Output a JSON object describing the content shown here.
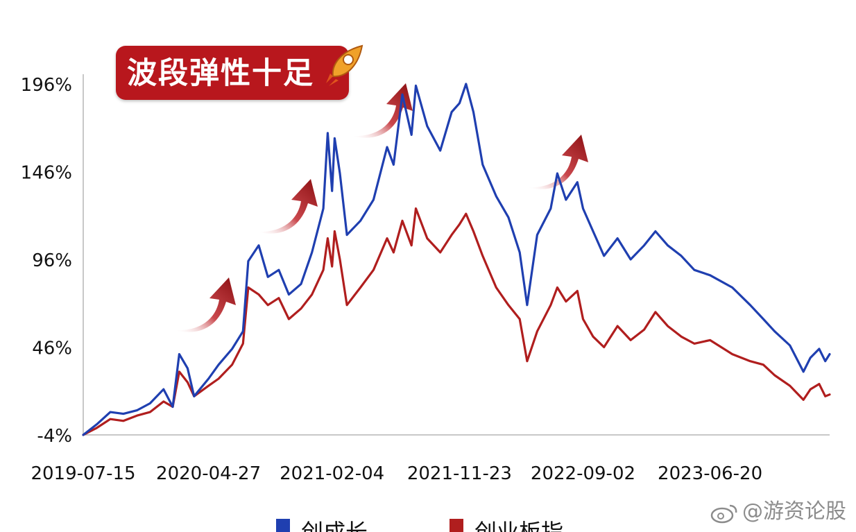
{
  "banner": {
    "text": "波段弹性十足",
    "color": "#b8171d"
  },
  "watermark": {
    "text": "@游资论股"
  },
  "chart_data": {
    "type": "line",
    "x_tick_labels": [
      "2019-07-15",
      "2020-04-27",
      "2021-02-04",
      "2021-11-23",
      "2022-09-02",
      "2023-06-20"
    ],
    "x_range": [
      "2019-07-15",
      "2024-03-20"
    ],
    "y_tick_labels": [
      "196%",
      "146%",
      "96%",
      "46%",
      "-4%"
    ],
    "y_ticks": [
      196,
      146,
      96,
      46,
      -4
    ],
    "ylim": [
      -4,
      196
    ],
    "grid": false,
    "legend_position": "bottom",
    "series": [
      {
        "name": "创成长",
        "color": "#1f3fb0",
        "points": [
          [
            "2019-07-15",
            -4
          ],
          [
            "2019-08-15",
            2
          ],
          [
            "2019-09-15",
            9
          ],
          [
            "2019-10-15",
            8
          ],
          [
            "2019-11-15",
            10
          ],
          [
            "2019-12-15",
            14
          ],
          [
            "2020-01-15",
            22
          ],
          [
            "2020-02-05",
            12
          ],
          [
            "2020-02-20",
            42
          ],
          [
            "2020-03-10",
            34
          ],
          [
            "2020-03-25",
            18
          ],
          [
            "2020-04-27",
            28
          ],
          [
            "2020-05-20",
            36
          ],
          [
            "2020-06-20",
            45
          ],
          [
            "2020-07-15",
            55
          ],
          [
            "2020-07-27",
            95
          ],
          [
            "2020-08-20",
            104
          ],
          [
            "2020-09-10",
            86
          ],
          [
            "2020-10-05",
            90
          ],
          [
            "2020-10-28",
            76
          ],
          [
            "2020-11-25",
            82
          ],
          [
            "2020-12-20",
            100
          ],
          [
            "2021-01-15",
            125
          ],
          [
            "2021-01-25",
            168
          ],
          [
            "2021-02-04",
            135
          ],
          [
            "2021-02-10",
            165
          ],
          [
            "2021-02-22",
            145
          ],
          [
            "2021-03-10",
            110
          ],
          [
            "2021-04-10",
            118
          ],
          [
            "2021-05-10",
            130
          ],
          [
            "2021-06-10",
            160
          ],
          [
            "2021-06-25",
            150
          ],
          [
            "2021-07-15",
            190
          ],
          [
            "2021-08-05",
            167
          ],
          [
            "2021-08-15",
            195
          ],
          [
            "2021-09-10",
            172
          ],
          [
            "2021-10-10",
            158
          ],
          [
            "2021-11-05",
            180
          ],
          [
            "2021-11-23",
            185
          ],
          [
            "2021-12-08",
            196
          ],
          [
            "2021-12-25",
            180
          ],
          [
            "2022-01-15",
            150
          ],
          [
            "2022-02-15",
            132
          ],
          [
            "2022-03-15",
            120
          ],
          [
            "2022-04-10",
            100
          ],
          [
            "2022-04-27",
            70
          ],
          [
            "2022-05-20",
            110
          ],
          [
            "2022-06-20",
            125
          ],
          [
            "2022-07-05",
            145
          ],
          [
            "2022-07-25",
            130
          ],
          [
            "2022-08-20",
            140
          ],
          [
            "2022-09-02",
            125
          ],
          [
            "2022-09-25",
            112
          ],
          [
            "2022-10-20",
            98
          ],
          [
            "2022-11-20",
            108
          ],
          [
            "2022-12-20",
            96
          ],
          [
            "2023-01-20",
            104
          ],
          [
            "2023-02-15",
            112
          ],
          [
            "2023-03-15",
            104
          ],
          [
            "2023-04-15",
            98
          ],
          [
            "2023-05-15",
            90
          ],
          [
            "2023-06-20",
            87
          ],
          [
            "2023-08-10",
            80
          ],
          [
            "2023-09-20",
            70
          ],
          [
            "2023-10-20",
            62
          ],
          [
            "2023-11-15",
            55
          ],
          [
            "2023-12-20",
            47
          ],
          [
            "2024-01-20",
            32
          ],
          [
            "2024-02-05",
            40
          ],
          [
            "2024-02-25",
            45
          ],
          [
            "2024-03-10",
            38
          ],
          [
            "2024-03-20",
            42
          ]
        ]
      },
      {
        "name": "创业板指",
        "color": "#b01e1e",
        "points": [
          [
            "2019-07-15",
            -4
          ],
          [
            "2019-08-15",
            0
          ],
          [
            "2019-09-15",
            5
          ],
          [
            "2019-10-15",
            4
          ],
          [
            "2019-11-15",
            7
          ],
          [
            "2019-12-15",
            9
          ],
          [
            "2020-01-15",
            15
          ],
          [
            "2020-02-05",
            12
          ],
          [
            "2020-02-20",
            32
          ],
          [
            "2020-03-10",
            26
          ],
          [
            "2020-03-25",
            18
          ],
          [
            "2020-04-27",
            24
          ],
          [
            "2020-05-20",
            28
          ],
          [
            "2020-06-20",
            36
          ],
          [
            "2020-07-15",
            48
          ],
          [
            "2020-07-27",
            80
          ],
          [
            "2020-08-20",
            76
          ],
          [
            "2020-09-10",
            70
          ],
          [
            "2020-10-05",
            74
          ],
          [
            "2020-10-28",
            62
          ],
          [
            "2020-11-25",
            68
          ],
          [
            "2020-12-20",
            76
          ],
          [
            "2021-01-15",
            90
          ],
          [
            "2021-01-25",
            108
          ],
          [
            "2021-02-04",
            92
          ],
          [
            "2021-02-10",
            112
          ],
          [
            "2021-02-22",
            96
          ],
          [
            "2021-03-10",
            70
          ],
          [
            "2021-04-10",
            80
          ],
          [
            "2021-05-10",
            90
          ],
          [
            "2021-06-10",
            108
          ],
          [
            "2021-06-25",
            100
          ],
          [
            "2021-07-15",
            118
          ],
          [
            "2021-08-05",
            104
          ],
          [
            "2021-08-15",
            125
          ],
          [
            "2021-09-10",
            108
          ],
          [
            "2021-10-10",
            100
          ],
          [
            "2021-11-05",
            110
          ],
          [
            "2021-11-23",
            116
          ],
          [
            "2021-12-08",
            122
          ],
          [
            "2021-12-25",
            112
          ],
          [
            "2022-01-15",
            98
          ],
          [
            "2022-02-15",
            80
          ],
          [
            "2022-03-15",
            70
          ],
          [
            "2022-04-10",
            62
          ],
          [
            "2022-04-27",
            38
          ],
          [
            "2022-05-20",
            55
          ],
          [
            "2022-06-20",
            70
          ],
          [
            "2022-07-05",
            80
          ],
          [
            "2022-07-25",
            72
          ],
          [
            "2022-08-20",
            78
          ],
          [
            "2022-09-02",
            62
          ],
          [
            "2022-09-25",
            52
          ],
          [
            "2022-10-20",
            46
          ],
          [
            "2022-11-20",
            58
          ],
          [
            "2022-12-20",
            50
          ],
          [
            "2023-01-20",
            56
          ],
          [
            "2023-02-15",
            66
          ],
          [
            "2023-03-15",
            58
          ],
          [
            "2023-04-15",
            52
          ],
          [
            "2023-05-15",
            48
          ],
          [
            "2023-06-20",
            50
          ],
          [
            "2023-08-10",
            42
          ],
          [
            "2023-09-20",
            38
          ],
          [
            "2023-10-20",
            36
          ],
          [
            "2023-11-15",
            30
          ],
          [
            "2023-12-20",
            24
          ],
          [
            "2024-01-20",
            16
          ],
          [
            "2024-02-05",
            22
          ],
          [
            "2024-02-25",
            25
          ],
          [
            "2024-03-10",
            18
          ],
          [
            "2024-03-20",
            19
          ]
        ]
      }
    ]
  }
}
